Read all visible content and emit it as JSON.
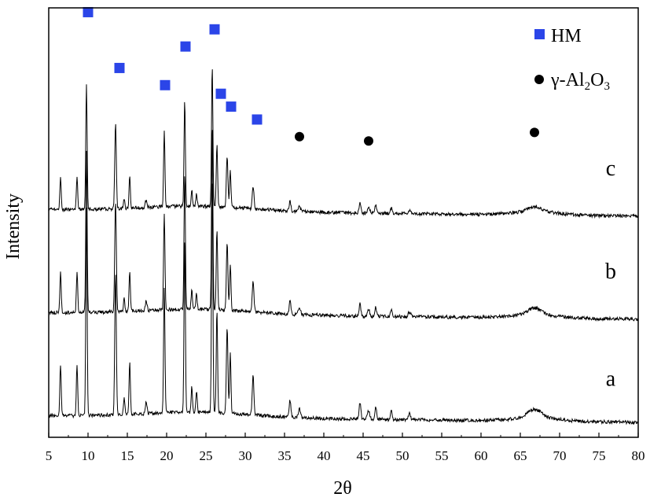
{
  "chart_data": {
    "type": "line",
    "xlabel": "2θ",
    "ylabel": "Intensity",
    "xlim": [
      5,
      80
    ],
    "x_ticks": [
      5,
      10,
      15,
      20,
      25,
      30,
      35,
      40,
      45,
      50,
      55,
      60,
      65,
      70,
      75,
      80
    ],
    "y_ticks_shown": false,
    "grid": false,
    "legend_position": "top-right",
    "legend": [
      {
        "label": "HM",
        "marker": "square",
        "color": "#2b45e8"
      },
      {
        "label": "γ-Al",
        "sub1": "2",
        "mid": "O",
        "sub2": "3",
        "marker": "circle",
        "color": "#000000"
      }
    ],
    "series": [
      {
        "name": "a",
        "baseline": 0.05,
        "offset": 0.0,
        "scale": 1.0
      },
      {
        "name": "b",
        "baseline": 0.05,
        "offset": 0.24,
        "scale": 0.78
      },
      {
        "name": "c",
        "baseline": 0.05,
        "offset": 0.48,
        "scale": 0.6
      }
    ],
    "peaks": [
      {
        "x": 6.5,
        "h": 0.12,
        "w": 0.12
      },
      {
        "x": 8.6,
        "h": 0.12,
        "w": 0.12
      },
      {
        "x": 9.8,
        "h": 0.48,
        "w": 0.12
      },
      {
        "x": 13.5,
        "h": 0.33,
        "w": 0.14
      },
      {
        "x": 14.6,
        "h": 0.04,
        "w": 0.12
      },
      {
        "x": 15.3,
        "h": 0.12,
        "w": 0.12
      },
      {
        "x": 17.4,
        "h": 0.03,
        "w": 0.15
      },
      {
        "x": 19.7,
        "h": 0.29,
        "w": 0.12
      },
      {
        "x": 22.3,
        "h": 0.41,
        "w": 0.12
      },
      {
        "x": 23.2,
        "h": 0.06,
        "w": 0.12
      },
      {
        "x": 23.8,
        "h": 0.05,
        "w": 0.12
      },
      {
        "x": 25.8,
        "h": 0.55,
        "w": 0.12
      },
      {
        "x": 26.4,
        "h": 0.24,
        "w": 0.12
      },
      {
        "x": 27.7,
        "h": 0.2,
        "w": 0.14
      },
      {
        "x": 28.1,
        "h": 0.14,
        "w": 0.12
      },
      {
        "x": 31.0,
        "h": 0.09,
        "w": 0.15
      },
      {
        "x": 35.7,
        "h": 0.04,
        "w": 0.15
      },
      {
        "x": 36.9,
        "h": 0.02,
        "w": 0.2
      },
      {
        "x": 44.6,
        "h": 0.04,
        "w": 0.15
      },
      {
        "x": 45.7,
        "h": 0.02,
        "w": 0.2
      },
      {
        "x": 46.6,
        "h": 0.03,
        "w": 0.15
      },
      {
        "x": 48.6,
        "h": 0.02,
        "w": 0.15
      },
      {
        "x": 50.9,
        "h": 0.015,
        "w": 0.2
      },
      {
        "x": 66.8,
        "h": 0.02,
        "w": 1.2
      }
    ],
    "markers_c": [
      {
        "x": 10.0,
        "y": 0.99,
        "kind": "HM"
      },
      {
        "x": 14.0,
        "y": 0.86,
        "kind": "HM"
      },
      {
        "x": 19.8,
        "y": 0.82,
        "kind": "HM"
      },
      {
        "x": 22.4,
        "y": 0.91,
        "kind": "HM"
      },
      {
        "x": 26.1,
        "y": 0.95,
        "kind": "HM"
      },
      {
        "x": 26.9,
        "y": 0.8,
        "kind": "HM"
      },
      {
        "x": 28.2,
        "y": 0.77,
        "kind": "HM"
      },
      {
        "x": 31.5,
        "y": 0.74,
        "kind": "HM"
      },
      {
        "x": 36.9,
        "y": 0.7,
        "kind": "Al2O3"
      },
      {
        "x": 45.7,
        "y": 0.69,
        "kind": "Al2O3"
      },
      {
        "x": 66.8,
        "y": 0.71,
        "kind": "Al2O3"
      }
    ],
    "curve_labels": [
      {
        "text": "a",
        "x": 76.5,
        "y": 0.12
      },
      {
        "text": "b",
        "x": 76.5,
        "y": 0.37
      },
      {
        "text": "c",
        "x": 76.5,
        "y": 0.61
      }
    ]
  }
}
